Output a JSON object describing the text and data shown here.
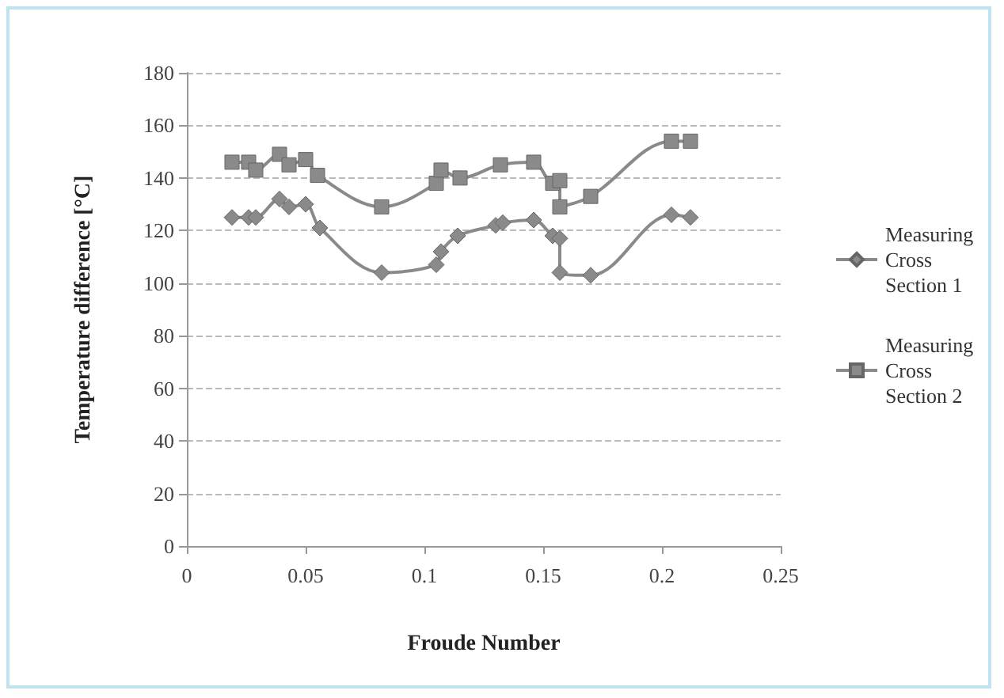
{
  "chart_data": {
    "type": "line",
    "xlabel": "Froude Number",
    "ylabel": "Temperature difference [°C]",
    "xlim": [
      0,
      0.25
    ],
    "xticks": [
      0,
      0.05,
      0.1,
      0.15,
      0.2,
      0.25
    ],
    "ylim": [
      0,
      180
    ],
    "yticks": [
      0,
      20,
      40,
      60,
      80,
      100,
      120,
      140,
      160,
      180
    ],
    "grid": "y",
    "legend": "right",
    "line_style": "solid",
    "series": [
      {
        "name": "Measuring Cross Section 1",
        "color": "#8a8a8a",
        "marker": "diamond",
        "x": [
          0.019,
          0.026,
          0.029,
          0.039,
          0.043,
          0.05,
          0.056,
          0.082,
          0.105,
          0.107,
          0.114,
          0.13,
          0.133,
          0.146,
          0.154,
          0.157,
          0.157,
          0.17,
          0.204,
          0.212
        ],
        "values": [
          125,
          125,
          125,
          132,
          129,
          130,
          121,
          104,
          107,
          112,
          118,
          122,
          123,
          124,
          118,
          117,
          104,
          103,
          126,
          125
        ]
      },
      {
        "name": "Measuring Cross Section 2",
        "color": "#8a8a8a",
        "marker": "square",
        "x": [
          0.019,
          0.026,
          0.029,
          0.039,
          0.043,
          0.05,
          0.055,
          0.082,
          0.105,
          0.107,
          0.115,
          0.132,
          0.146,
          0.154,
          0.157,
          0.157,
          0.17,
          0.204,
          0.212
        ],
        "values": [
          146,
          146,
          143,
          149,
          145,
          147,
          141,
          129,
          138,
          143,
          140,
          145,
          146,
          138,
          139,
          129,
          133,
          154,
          154
        ]
      }
    ]
  }
}
